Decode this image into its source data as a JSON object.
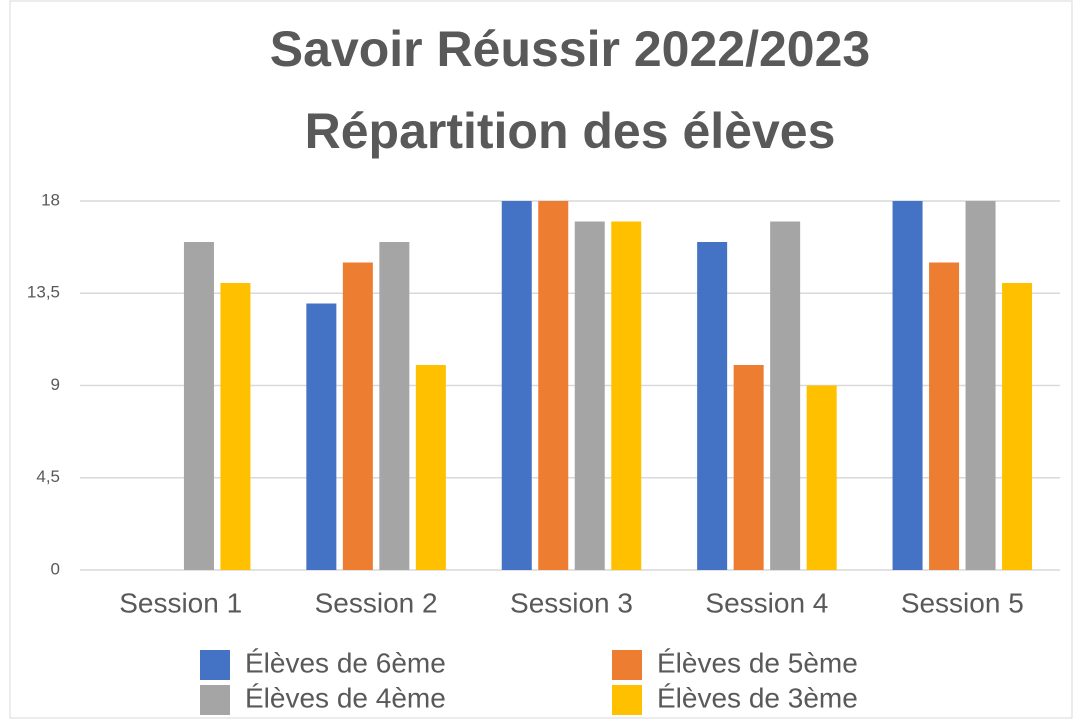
{
  "chart_data": {
    "type": "bar",
    "title": "Savoir Réussir 2022/2023\nRépartition des élèves",
    "categories": [
      "Session 1",
      "Session 2",
      "Session 3",
      "Session 4",
      "Session 5"
    ],
    "series": [
      {
        "name": "Élèves de 6ème",
        "color": "#4472c4",
        "values": [
          null,
          13,
          18,
          16,
          18
        ]
      },
      {
        "name": "Élèves de 5ème",
        "color": "#ed7d31",
        "values": [
          null,
          15,
          18,
          10,
          15
        ]
      },
      {
        "name": "Élèves de 4ème",
        "color": "#a5a5a5",
        "values": [
          16,
          16,
          17,
          17,
          18
        ]
      },
      {
        "name": "Élèves de 3ème",
        "color": "#ffc000",
        "values": [
          14,
          10,
          17,
          9,
          14
        ]
      }
    ],
    "ylim": [
      0,
      18
    ],
    "yticks": [
      0,
      {
        "value": 4.5,
        "label": "4,5"
      },
      9,
      {
        "value": 13.5,
        "label": "13,5"
      },
      18
    ],
    "grid": true,
    "legend": "bottom"
  }
}
